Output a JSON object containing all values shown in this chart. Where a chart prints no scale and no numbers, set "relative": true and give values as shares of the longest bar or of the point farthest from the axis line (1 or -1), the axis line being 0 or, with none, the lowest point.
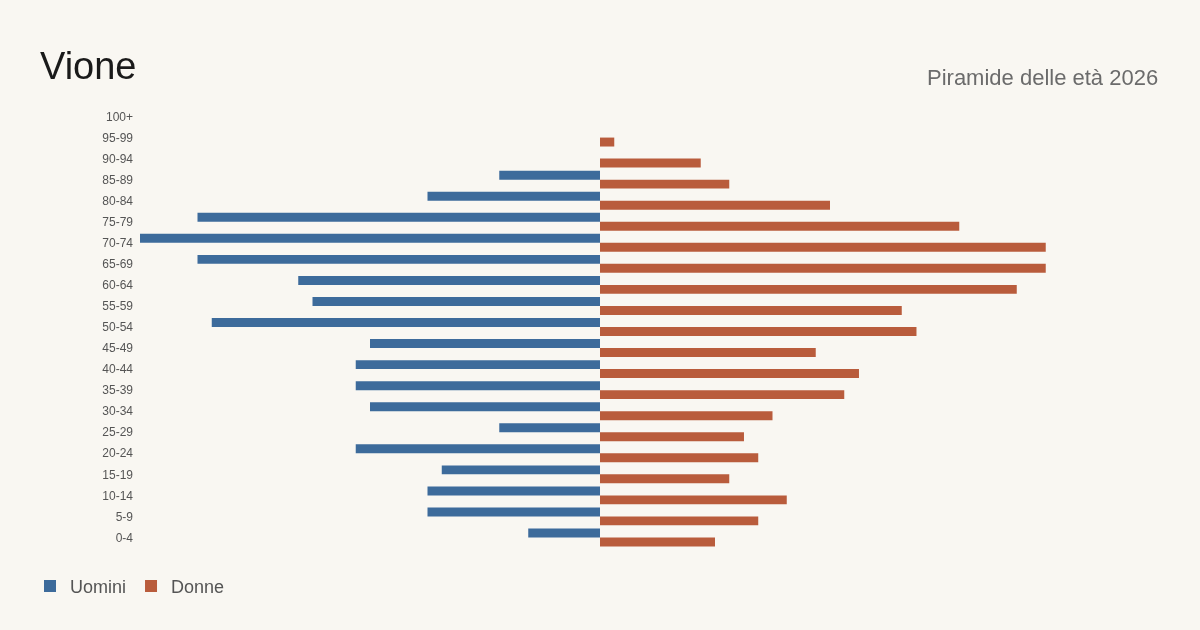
{
  "chart_data": {
    "type": "bar",
    "orientation": "horizontal",
    "relative": true,
    "title": "Vione",
    "subtitle": "Piramide delle età 2026",
    "legend": "bottom left",
    "categories": [
      "100+",
      "95-99",
      "90-94",
      "85-89",
      "80-84",
      "75-79",
      "70-74",
      "65-69",
      "60-64",
      "55-59",
      "50-54",
      "45-49",
      "40-44",
      "35-39",
      "30-34",
      "25-29",
      "20-24",
      "15-19",
      "10-14",
      "5-9",
      "0-4"
    ],
    "series": [
      {
        "name": "Uomini",
        "color": "#3d6b9b",
        "values": [
          0,
          0,
          0,
          -0.219,
          -0.375,
          -0.875,
          -1,
          -0.875,
          -0.656,
          -0.625,
          -0.844,
          -0.5,
          -0.531,
          -0.531,
          -0.5,
          -0.219,
          -0.531,
          -0.344,
          -0.375,
          -0.375,
          -0.156
        ]
      },
      {
        "name": "Donne",
        "color": "#b95c3c",
        "values": [
          0,
          0.031,
          0.219,
          0.281,
          0.5,
          0.781,
          0.969,
          0.969,
          0.906,
          0.656,
          0.688,
          0.469,
          0.563,
          0.531,
          0.375,
          0.313,
          0.344,
          0.281,
          0.406,
          0.344,
          0.25
        ]
      }
    ]
  }
}
